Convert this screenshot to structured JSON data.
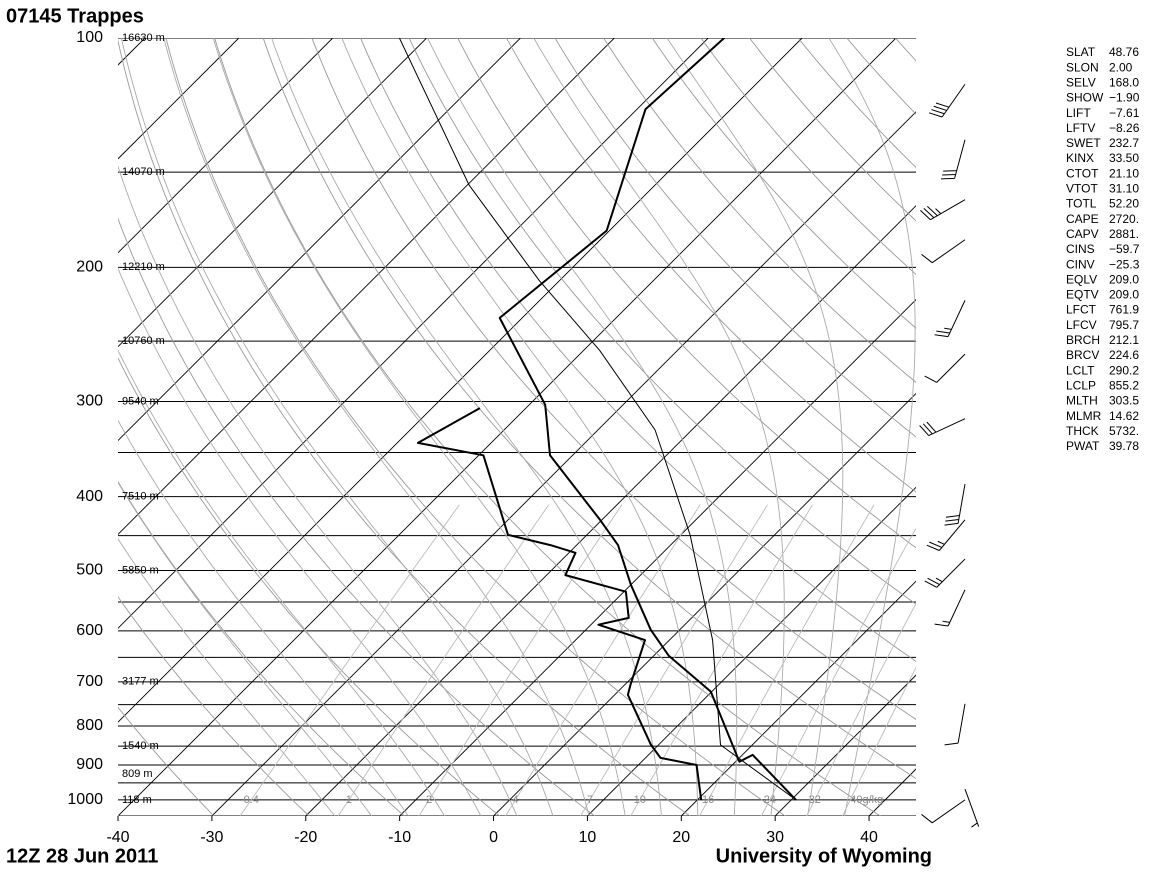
{
  "chart_data": {
    "type": "skewt",
    "title": "07145  Trappes",
    "subtitle": "12Z 28 Jun 2011",
    "source": "University of Wyoming",
    "log_scale": true,
    "ylim": [
      1050,
      100
    ],
    "yticks": [
      100,
      200,
      300,
      400,
      500,
      600,
      700,
      800,
      900,
      1000
    ],
    "isobars": [
      100,
      150,
      200,
      250,
      300,
      350,
      400,
      450,
      500,
      550,
      600,
      650,
      700,
      750,
      800,
      850,
      900,
      950,
      1000,
      1050
    ],
    "xlim": [
      -40,
      45
    ],
    "xticks": [
      -40,
      -30,
      -20,
      -10,
      0,
      10,
      20,
      30,
      40
    ],
    "isotherms": [
      -120,
      -110,
      -100,
      -90,
      -80,
      -70,
      -60,
      -50,
      -40,
      -30,
      -20,
      -10,
      0,
      10,
      20,
      30,
      40
    ],
    "dry_adiabats": [
      230,
      240,
      250,
      260,
      270,
      280,
      290,
      300,
      310,
      320,
      330,
      340,
      350,
      360,
      370,
      380,
      390,
      400,
      410,
      420,
      430,
      440,
      450,
      460,
      470,
      480,
      490,
      500
    ],
    "moist_adiabats": [
      -20,
      -16,
      -12,
      -8,
      -4,
      0,
      4,
      8,
      12,
      16,
      20,
      24,
      28,
      32,
      36
    ],
    "mixing_ratios": [
      0.4,
      1,
      2,
      4,
      7,
      10,
      16,
      24,
      32,
      {
        "value": 40,
        "label": "40g/kg"
      }
    ],
    "heights": [
      {
        "p": 100,
        "label": "16630 m"
      },
      {
        "p": 150,
        "label": "14070 m"
      },
      {
        "p": 200,
        "label": "12210 m"
      },
      {
        "p": 250,
        "label": "10760 m"
      },
      {
        "p": 300,
        "label": "9540 m"
      },
      {
        "p": 400,
        "label": "7510 m"
      },
      {
        "p": 500,
        "label": "5850 m"
      },
      {
        "p": 700,
        "label": "3177 m"
      },
      {
        "p": 850,
        "label": "1540 m"
      },
      {
        "p": 925,
        "label": "809 m"
      },
      {
        "p": 1000,
        "label": "118 m"
      }
    ],
    "series": [
      {
        "color": "#000000",
        "width": 2,
        "pressure": [
          1000,
          873,
          891,
          721,
          647,
          598,
          522,
          463,
          429,
          353,
          303,
          233,
          179,
          124,
          100
        ],
        "values": [
          30.5,
          21.1,
          20.4,
          9.9,
          1.6,
          -3.1,
          -10.0,
          -15.6,
          -20.2,
          -32.4,
          -38.3,
          -52.4,
          -50.3,
          -59.1,
          -58.3
        ]
      },
      {
        "color": "#000000",
        "width": 2,
        "pressure": [
          1000,
          900,
          881,
          847,
          728,
          706,
          617,
          589,
          577,
          533,
          507,
          474,
          463,
          449,
          353,
          340,
          306
        ],
        "values": [
          20.4,
          16.2,
          11.6,
          9.2,
          1.4,
          0.6,
          -2.6,
          -9.2,
          -6.7,
          -9.8,
          -18.0,
          -19.3,
          -22.8,
          -28.4,
          -39.5,
          -47.8,
          -44.9
        ]
      },
      {
        "color": "#000000",
        "width": 1,
        "pressure": [
          1000,
          847,
          617,
          449,
          327,
          257,
          208,
          156,
          100
        ],
        "values": [
          30.5,
          16.6,
          4.6,
          -9.0,
          -23.9,
          -38.3,
          -52.2,
          -69.8,
          -92.9
        ]
      }
    ],
    "wind": {
      "pressure": [
        115,
        136,
        163,
        184,
        221,
        260,
        316,
        385,
        429,
        483,
        530,
        748,
        968,
        1000
      ],
      "direction": [
        215,
        195,
        240,
        235,
        205,
        225,
        245,
        190,
        220,
        225,
        205,
        190,
        160,
        235
      ],
      "speed": [
        40,
        30,
        35,
        10,
        25,
        10,
        30,
        30,
        25,
        25,
        15,
        10,
        5,
        10
      ]
    },
    "stats": {
      "rows": [
        [
          "SLAT",
          "48.76"
        ],
        [
          "SLON",
          "2.00"
        ],
        [
          "SELV",
          "168.0"
        ],
        [
          "SHOW",
          "−1.90"
        ],
        [
          "LIFT",
          "−7.61"
        ],
        [
          "LFTV",
          "−8.26"
        ],
        [
          "SWET",
          "232.7"
        ],
        [
          "KINX",
          "33.50"
        ],
        [
          "CTOT",
          "21.10"
        ],
        [
          "VTOT",
          "31.10"
        ],
        [
          "TOTL",
          "52.20"
        ],
        [
          "CAPE",
          "2720."
        ],
        [
          "CAPV",
          "2881."
        ],
        [
          "CINS",
          "−59.7"
        ],
        [
          "CINV",
          "−25.3"
        ],
        [
          "EQLV",
          "209.0"
        ],
        [
          "EQTV",
          "209.0"
        ],
        [
          "LFCT",
          "761.9"
        ],
        [
          "LFCV",
          "795.7"
        ],
        [
          "BRCH",
          "212.1"
        ],
        [
          "BRCV",
          "224.6"
        ],
        [
          "LCLT",
          "290.2"
        ],
        [
          "LCLP",
          "855.2"
        ],
        [
          "MLTH",
          "303.5"
        ],
        [
          "MLMR",
          "14.62"
        ],
        [
          "THCK",
          "5732."
        ],
        [
          "PWAT",
          "39.78"
        ]
      ]
    }
  }
}
